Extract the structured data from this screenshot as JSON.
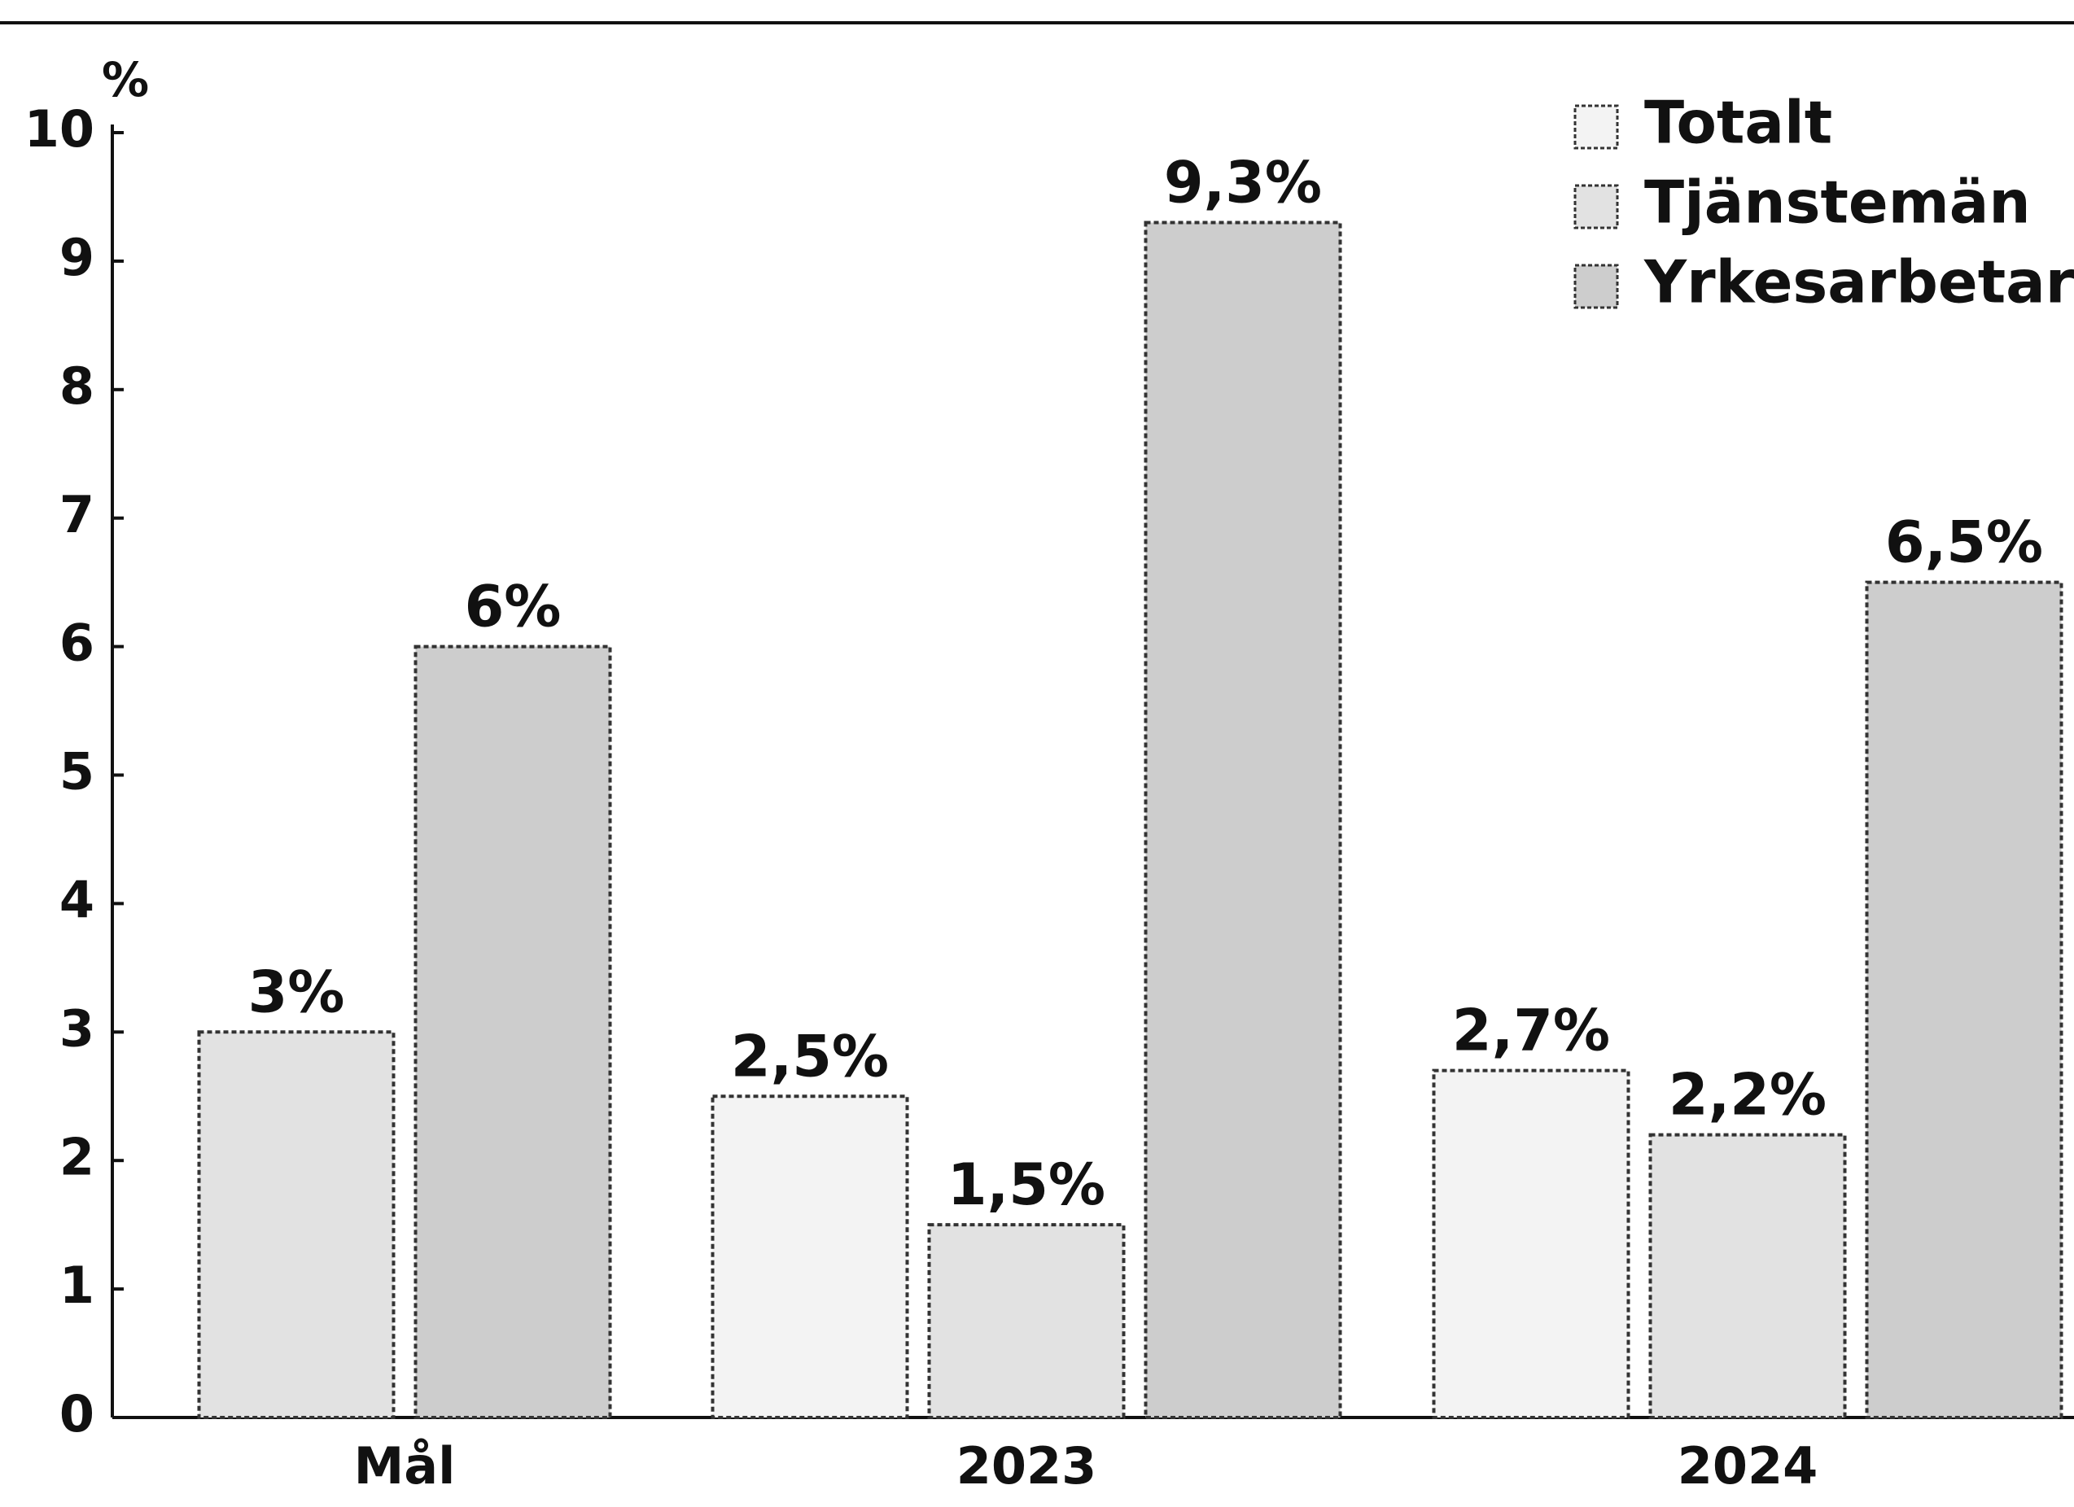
{
  "chart_data": {
    "type": "bar",
    "y_axis_label": "%",
    "categories": [
      "Mål",
      "2023",
      "2024"
    ],
    "series": [
      {
        "name": "Totalt",
        "color": "#f3f3f3",
        "values": [
          null,
          2.5,
          2.7
        ],
        "value_labels": [
          null,
          "2,5%",
          "2,7%"
        ]
      },
      {
        "name": "Tjänstemän",
        "color": "#e2e2e2",
        "values": [
          3,
          1.5,
          2.2
        ],
        "value_labels": [
          "3%",
          "1,5%",
          "2,2%"
        ]
      },
      {
        "name": "Yrkesarbetare",
        "color": "#cdcdcd",
        "values": [
          6,
          9.3,
          6.5
        ],
        "value_labels": [
          "6%",
          "9,3%",
          "6,5%"
        ]
      }
    ],
    "ylim": [
      0,
      10
    ],
    "yticks": [
      0,
      1,
      2,
      3,
      4,
      5,
      6,
      7,
      8,
      9,
      10
    ],
    "grid": false,
    "legend": "top-right"
  }
}
